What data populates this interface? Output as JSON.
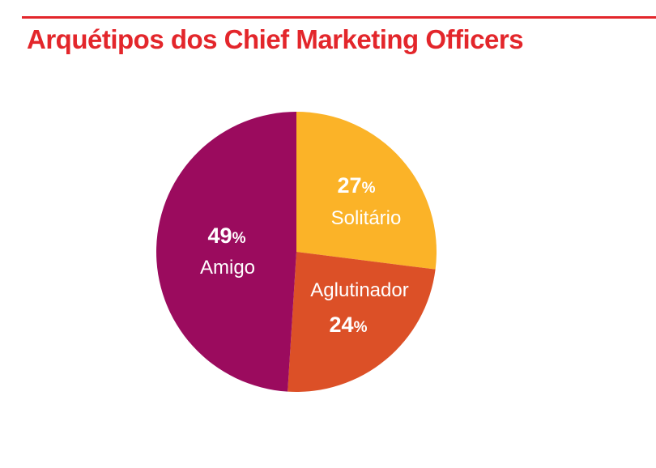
{
  "title": "Arquétipos dos Chief Marketing Officers",
  "colors": {
    "accent": "#e3262b"
  },
  "chart_data": {
    "type": "pie",
    "slices": [
      {
        "label": "Solitário",
        "value": 27,
        "unit": "%",
        "color": "#fbb328"
      },
      {
        "label": "Aglutinador",
        "value": 24,
        "unit": "%",
        "color": "#dc5027"
      },
      {
        "label": "Amigo",
        "value": 49,
        "unit": "%",
        "color": "#9b0b5e"
      }
    ]
  }
}
